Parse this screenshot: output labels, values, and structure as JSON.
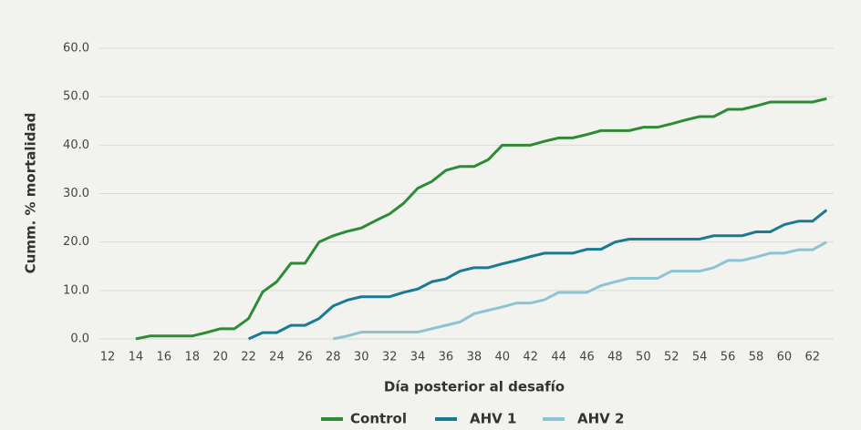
{
  "chart_data": {
    "type": "line",
    "y_label": "Cumm. % mortalidad",
    "x_label": "Día posterior al desafío",
    "x": [
      14,
      15,
      16,
      17,
      18,
      19,
      20,
      21,
      22,
      23,
      24,
      25,
      26,
      27,
      28,
      29,
      30,
      31,
      32,
      33,
      34,
      35,
      36,
      37,
      38,
      39,
      40,
      41,
      42,
      43,
      44,
      45,
      46,
      47,
      48,
      49,
      50,
      51,
      52,
      53,
      54,
      55,
      56,
      57,
      58,
      59,
      60,
      61,
      62,
      63
    ],
    "series": [
      {
        "name": "Control",
        "color": "#2e8b35",
        "values": [
          0,
          0.6,
          0.6,
          0.6,
          0.6,
          1.3,
          2.1,
          2.1,
          4.2,
          9.7,
          11.8,
          15.6,
          15.6,
          20.0,
          21.3,
          22.2,
          22.9,
          24.4,
          25.8,
          28.0,
          31.1,
          32.5,
          34.8,
          35.6,
          35.6,
          37.0,
          40.0,
          40.0,
          40.0,
          40.8,
          41.5,
          41.5,
          42.2,
          43.0,
          43.0,
          43.0,
          43.7,
          43.7,
          44.4,
          45.2,
          45.9,
          45.9,
          47.4,
          47.4,
          48.1,
          48.9,
          48.9,
          48.9,
          48.9,
          49.6
        ]
      },
      {
        "name": "AHV 1",
        "color": "#1b7a93",
        "values": [
          null,
          null,
          null,
          null,
          null,
          null,
          null,
          null,
          0,
          1.3,
          1.3,
          2.8,
          2.8,
          4.2,
          6.8,
          8.0,
          8.7,
          8.7,
          8.7,
          9.6,
          10.3,
          11.8,
          12.4,
          14.0,
          14.7,
          14.7,
          15.5,
          16.2,
          17.0,
          17.7,
          17.7,
          17.7,
          18.5,
          18.5,
          20.0,
          20.6,
          20.6,
          20.6,
          20.6,
          20.6,
          20.6,
          21.3,
          21.3,
          21.3,
          22.1,
          22.1,
          23.6,
          24.3,
          24.3,
          26.6
        ]
      },
      {
        "name": "AHV 2",
        "color": "#8cc4d4",
        "values": [
          null,
          null,
          null,
          null,
          null,
          null,
          null,
          null,
          null,
          null,
          null,
          null,
          null,
          null,
          0,
          0.6,
          1.4,
          1.4,
          1.4,
          1.4,
          1.4,
          2.1,
          2.8,
          3.5,
          5.2,
          5.9,
          6.6,
          7.4,
          7.4,
          8.1,
          9.6,
          9.6,
          9.6,
          11.0,
          11.8,
          12.5,
          12.5,
          12.5,
          14.0,
          14.0,
          14.0,
          14.7,
          16.2,
          16.2,
          16.9,
          17.7,
          17.7,
          18.4,
          18.4,
          20.0
        ]
      }
    ],
    "xlim": [
      11.4,
      63.5
    ],
    "xticks": [
      12,
      14,
      16,
      18,
      20,
      22,
      24,
      26,
      28,
      30,
      32,
      34,
      36,
      38,
      40,
      42,
      44,
      46,
      48,
      50,
      52,
      54,
      56,
      58,
      60,
      62
    ],
    "ylim": [
      0,
      60
    ],
    "yticks": [
      {
        "value": 0,
        "label": "0.0"
      },
      {
        "value": 10,
        "label": "10.0"
      },
      {
        "value": 20,
        "label": "20.0"
      },
      {
        "value": 30,
        "label": "30.0"
      },
      {
        "value": 40,
        "label": "40.0"
      },
      {
        "value": 50,
        "label": "50.0"
      },
      {
        "value": 60,
        "label": "60.0"
      }
    ],
    "grid": true,
    "legend": "bottom"
  }
}
